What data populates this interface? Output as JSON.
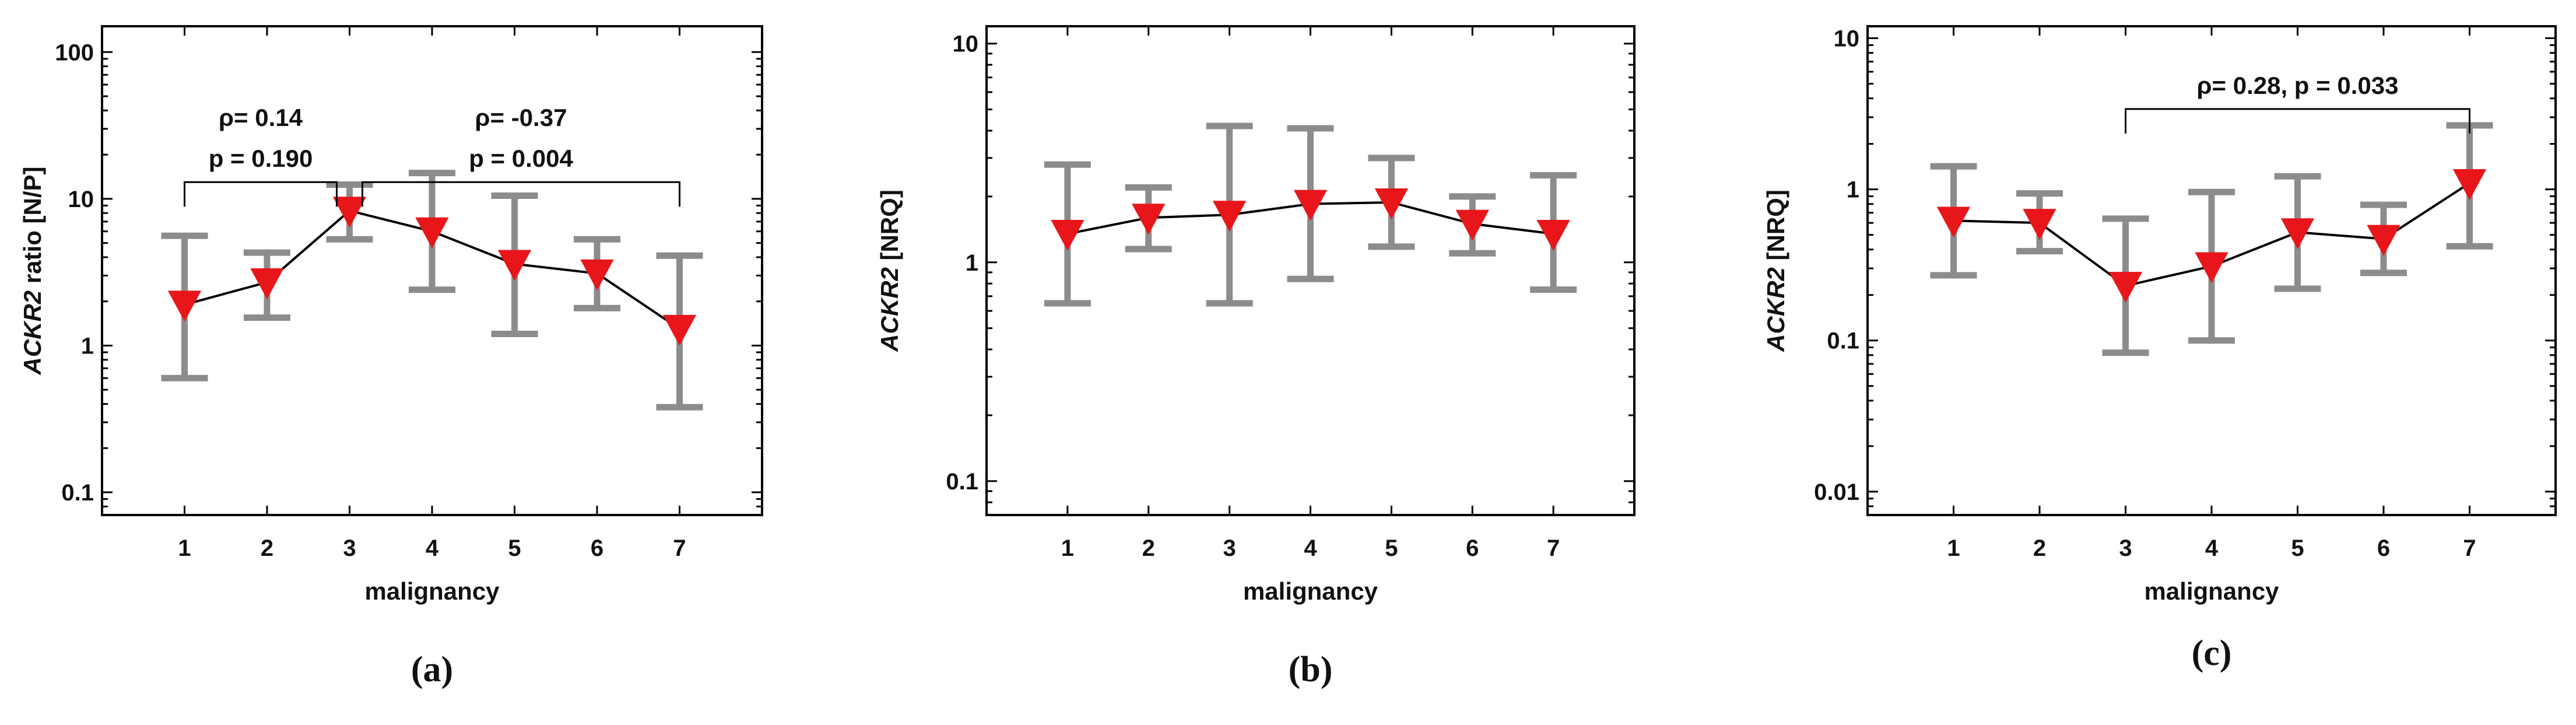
{
  "chart_data": [
    {
      "type": "line",
      "panel_label": "(a)",
      "y_scale": "log",
      "ylim": [
        0.07,
        150
      ],
      "yticks": [
        0.1,
        1,
        10,
        100
      ],
      "ytick_labels": [
        "0.1",
        "1",
        "10",
        "100"
      ],
      "ylabel_italic": "ACKR2",
      "ylabel_rest": " ratio [N/P]",
      "xlabel": "malignancy",
      "xlim": [
        0,
        8
      ],
      "x": [
        1,
        2,
        3,
        4,
        5,
        6,
        7
      ],
      "xtick_labels": [
        "1",
        "2",
        "3",
        "4",
        "5",
        "6",
        "7"
      ],
      "values": [
        1.9,
        2.7,
        8.3,
        6.0,
        3.6,
        3.1,
        1.3
      ],
      "err_low": [
        0.6,
        1.55,
        5.3,
        2.4,
        1.2,
        1.8,
        0.38
      ],
      "err_high": [
        5.6,
        4.3,
        12.5,
        15.0,
        10.5,
        5.3,
        4.1
      ],
      "annotations": [
        {
          "x_from": 1,
          "x_to": 3,
          "y": 13,
          "lines": [
            "ρ= 0.14",
            "p = 0.190"
          ]
        },
        {
          "x_from": 3,
          "x_to": 7,
          "y": 13,
          "lines": [
            "ρ= -0.37",
            "p = 0.004"
          ]
        }
      ]
    },
    {
      "type": "line",
      "panel_label": "(b)",
      "y_scale": "log",
      "ylim": [
        0.07,
        12
      ],
      "yticks": [
        0.1,
        1,
        10
      ],
      "ytick_labels": [
        "0.1",
        "1",
        "10"
      ],
      "ylabel_italic": "ACKR2",
      "ylabel_rest": "  [NRQ]",
      "xlabel": "malignancy",
      "xlim": [
        0,
        8
      ],
      "x": [
        1,
        2,
        3,
        4,
        5,
        6,
        7
      ],
      "xtick_labels": [
        "1",
        "2",
        "3",
        "4",
        "5",
        "6",
        "7"
      ],
      "values": [
        1.35,
        1.6,
        1.65,
        1.85,
        1.88,
        1.5,
        1.35
      ],
      "err_low": [
        0.65,
        1.15,
        0.65,
        0.84,
        1.18,
        1.1,
        0.75
      ],
      "err_high": [
        2.8,
        2.2,
        4.2,
        4.1,
        3.0,
        2.0,
        2.5
      ],
      "annotations": []
    },
    {
      "type": "line",
      "panel_label": "(c)",
      "y_scale": "log",
      "ylim": [
        0.007,
        12
      ],
      "yticks": [
        0.01,
        0.1,
        1,
        10
      ],
      "ytick_labels": [
        "0.01",
        "0.1",
        "1",
        "10"
      ],
      "ylabel_italic": "ACKR2",
      "ylabel_rest": "  [NRQ]",
      "xlabel": "malignancy",
      "xlim": [
        0,
        8
      ],
      "x": [
        1,
        2,
        3,
        4,
        5,
        6,
        7
      ],
      "xtick_labels": [
        "1",
        "2",
        "3",
        "4",
        "5",
        "6",
        "7"
      ],
      "values": [
        0.62,
        0.6,
        0.23,
        0.31,
        0.52,
        0.47,
        1.1
      ],
      "err_low": [
        0.27,
        0.39,
        0.083,
        0.1,
        0.22,
        0.28,
        0.42
      ],
      "err_high": [
        1.42,
        0.94,
        0.64,
        0.96,
        1.22,
        0.79,
        2.65
      ],
      "annotations": [
        {
          "x_from": 3,
          "x_to": 7,
          "y": 3.4,
          "lines": [
            "ρ= 0.28, p = 0.033"
          ]
        }
      ]
    }
  ],
  "colors": {
    "marker": "#e8161b",
    "error_bar": "#8c8c8c",
    "line": "#000000",
    "axis": "#000000"
  }
}
